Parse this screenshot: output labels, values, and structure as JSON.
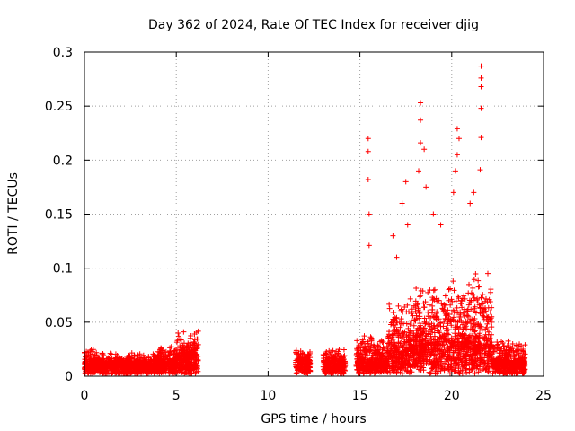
{
  "chart_data": {
    "type": "scatter",
    "title": "Day 362 of 2024, Rate Of TEC Index for receiver djig",
    "xlabel": "GPS time / hours",
    "ylabel": "ROTI / TECUs",
    "xlim": [
      0,
      25
    ],
    "ylim": [
      0,
      0.3
    ],
    "x_ticks": [
      "0",
      "5",
      "10",
      "15",
      "20",
      "25"
    ],
    "y_ticks": [
      "0",
      "0.05",
      "0.1",
      "0.15",
      "0.2",
      "0.25",
      "0.3"
    ],
    "x_tick_values": [
      0,
      5,
      10,
      15,
      20,
      25
    ],
    "y_tick_values": [
      0,
      0.05,
      0.1,
      0.15,
      0.2,
      0.25,
      0.3
    ],
    "grid": true,
    "marker": "+",
    "color": "#ff0000",
    "series": [
      {
        "name": "ROTI",
        "segments": [
          {
            "start": 0.0,
            "end": 1.0,
            "base": 0.012,
            "spread": 0.012,
            "max": 0.035
          },
          {
            "start": 1.0,
            "end": 2.5,
            "base": 0.01,
            "spread": 0.01,
            "max": 0.027
          },
          {
            "start": 2.5,
            "end": 4.0,
            "base": 0.01,
            "spread": 0.011,
            "max": 0.025
          },
          {
            "start": 4.0,
            "end": 5.0,
            "base": 0.014,
            "spread": 0.014,
            "max": 0.03
          },
          {
            "start": 5.0,
            "end": 6.2,
            "base": 0.02,
            "spread": 0.022,
            "max": 0.065
          },
          {
            "start": 11.5,
            "end": 12.3,
            "base": 0.012,
            "spread": 0.012,
            "max": 0.037
          },
          {
            "start": 13.0,
            "end": 14.2,
            "base": 0.012,
            "spread": 0.012,
            "max": 0.035
          },
          {
            "start": 14.8,
            "end": 16.5,
            "base": 0.012,
            "spread": 0.025,
            "max": 0.09
          },
          {
            "start": 16.5,
            "end": 18.0,
            "base": 0.025,
            "spread": 0.045,
            "max": 0.17
          },
          {
            "start": 18.0,
            "end": 19.5,
            "base": 0.03,
            "spread": 0.055,
            "max": 0.19
          },
          {
            "start": 19.5,
            "end": 21.0,
            "base": 0.03,
            "spread": 0.06,
            "max": 0.18
          },
          {
            "start": 21.0,
            "end": 22.2,
            "base": 0.03,
            "spread": 0.065,
            "max": 0.17
          },
          {
            "start": 22.2,
            "end": 24.0,
            "base": 0.012,
            "spread": 0.02,
            "max": 0.05
          }
        ],
        "peaks": [
          {
            "x": 15.45,
            "y": 0.22
          },
          {
            "x": 15.45,
            "y": 0.208
          },
          {
            "x": 15.45,
            "y": 0.182
          },
          {
            "x": 15.5,
            "y": 0.15
          },
          {
            "x": 15.5,
            "y": 0.121
          },
          {
            "x": 17.5,
            "y": 0.18
          },
          {
            "x": 17.3,
            "y": 0.16
          },
          {
            "x": 17.6,
            "y": 0.14
          },
          {
            "x": 18.3,
            "y": 0.253
          },
          {
            "x": 18.3,
            "y": 0.237
          },
          {
            "x": 18.3,
            "y": 0.216
          },
          {
            "x": 18.5,
            "y": 0.21
          },
          {
            "x": 18.2,
            "y": 0.19
          },
          {
            "x": 18.6,
            "y": 0.175
          },
          {
            "x": 20.3,
            "y": 0.229
          },
          {
            "x": 20.4,
            "y": 0.22
          },
          {
            "x": 20.3,
            "y": 0.205
          },
          {
            "x": 20.2,
            "y": 0.19
          },
          {
            "x": 20.1,
            "y": 0.17
          },
          {
            "x": 21.6,
            "y": 0.287
          },
          {
            "x": 21.6,
            "y": 0.276
          },
          {
            "x": 21.6,
            "y": 0.268
          },
          {
            "x": 21.6,
            "y": 0.248
          },
          {
            "x": 21.6,
            "y": 0.221
          },
          {
            "x": 21.55,
            "y": 0.191
          },
          {
            "x": 21.0,
            "y": 0.16
          },
          {
            "x": 21.2,
            "y": 0.17
          },
          {
            "x": 19.0,
            "y": 0.15
          },
          {
            "x": 19.4,
            "y": 0.14
          },
          {
            "x": 16.8,
            "y": 0.13
          },
          {
            "x": 17.0,
            "y": 0.11
          }
        ]
      }
    ]
  }
}
